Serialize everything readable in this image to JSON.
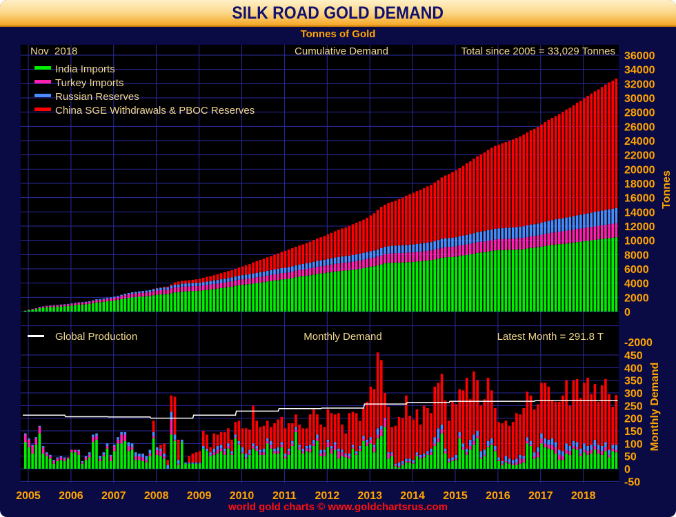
{
  "title": "SILK ROAD GOLD DEMAND",
  "subtitle": "Tonnes of Gold",
  "footer": "world gold charts © www.goldchartsrus.com",
  "colors": {
    "india": "#00ee00",
    "turkey": "#ff20b0",
    "russia": "#4a8cff",
    "china": "#ff0000",
    "production": "#ffffff",
    "axis": "#ffa500"
  },
  "chart_data": [
    {
      "type": "bar",
      "stacked": true,
      "cumulative": true,
      "title": "Cumulative Demand",
      "date_label": "Nov  2018",
      "total_label": "Total since 2005 = 33,029 Tonnes",
      "ylabel": "Tonnes",
      "ylim": [
        0,
        36000
      ],
      "yticks": [
        36000,
        34000,
        32000,
        30000,
        28000,
        26000,
        24000,
        22000,
        20000,
        18000,
        16000,
        14000,
        12000,
        10000,
        8000,
        6000,
        4000,
        2000,
        0,
        -2000
      ],
      "legend": [
        "India Imports",
        "Turkey Imports",
        "Russian Reserves",
        "China SGE Withdrawals & PBOC Reserves"
      ],
      "legend_position": "top-left",
      "grid": true
    },
    {
      "type": "bar",
      "stacked": true,
      "title": "Monthly Demand",
      "latest_label": "Latest Month = 291.8 T",
      "production_label": "Global Production",
      "ylabel": "Monthly Demand",
      "ylim": [
        -50,
        450
      ],
      "yticks": [
        450,
        400,
        350,
        300,
        250,
        200,
        150,
        100,
        50,
        0,
        -50
      ],
      "xticks": [
        "2005",
        "2006",
        "2007",
        "2008",
        "2009",
        "2010",
        "2011",
        "2012",
        "2013",
        "2014",
        "2015",
        "2016",
        "2017",
        "2018"
      ],
      "x_start": "2005-01",
      "x_end": "2018-11",
      "grid": true,
      "production_by_year": [
        212,
        206,
        205,
        200,
        212,
        228,
        238,
        240,
        256,
        262,
        267,
        267,
        270,
        270
      ],
      "series": {
        "india": [
          105,
          85,
          60,
          95,
          140,
          60,
          50,
          40,
          20,
          30,
          35,
          30,
          40,
          65,
          65,
          55,
          20,
          35,
          45,
          105,
          115,
          30,
          50,
          80,
          30,
          70,
          100,
          100,
          110,
          70,
          75,
          35,
          35,
          30,
          25,
          50,
          120,
          55,
          50,
          40,
          0,
          135,
          110,
          15,
          105,
          20,
          20,
          20,
          20,
          20,
          80,
          70,
          50,
          55,
          60,
          70,
          55,
          80,
          55,
          120,
          95,
          60,
          40,
          55,
          80,
          70,
          55,
          55,
          100,
          80,
          60,
          60,
          85,
          40,
          55,
          90,
          145,
          75,
          60,
          70,
          65,
          90,
          110,
          50,
          50,
          85,
          60,
          75,
          40,
          50,
          45,
          40,
          80,
          55,
          70,
          110,
          90,
          100,
          65,
          120,
          130,
          165,
          40,
          50,
          10,
          5,
          15,
          25,
          25,
          20,
          50,
          40,
          45,
          55,
          55,
          90,
          105,
          140,
          60,
          25,
          30,
          35,
          120,
          75,
          55,
          75,
          95,
          120,
          40,
          50,
          85,
          95,
          70,
          30,
          15,
          25,
          20,
          15,
          15,
          20,
          25,
          100,
          90,
          40,
          45,
          100,
          85,
          80,
          75,
          60,
          35,
          35,
          60,
          55,
          80,
          75,
          50,
          65,
          55,
          60,
          75,
          60,
          55,
          70,
          45,
          70,
          65
        ],
        "turkey": [
          30,
          30,
          30,
          25,
          25,
          25,
          10,
          10,
          10,
          10,
          10,
          10,
          5,
          10,
          10,
          15,
          5,
          10,
          10,
          20,
          15,
          10,
          5,
          10,
          20,
          20,
          15,
          35,
          25,
          20,
          10,
          15,
          15,
          15,
          10,
          10,
          10,
          20,
          20,
          10,
          0,
          60,
          5,
          5,
          0,
          0,
          0,
          0,
          0,
          0,
          0,
          0,
          5,
          10,
          15,
          10,
          15,
          10,
          5,
          5,
          5,
          5,
          5,
          5,
          10,
          10,
          10,
          10,
          10,
          15,
          10,
          10,
          10,
          10,
          15,
          10,
          10,
          10,
          10,
          10,
          15,
          10,
          10,
          10,
          15,
          20,
          20,
          20,
          30,
          15,
          10,
          10,
          5,
          5,
          10,
          10,
          15,
          15,
          20,
          15,
          25,
          30,
          20,
          10,
          5,
          5,
          5,
          5,
          5,
          5,
          5,
          5,
          5,
          5,
          10,
          10,
          15,
          15,
          10,
          5,
          5,
          5,
          10,
          10,
          10,
          15,
          15,
          10,
          5,
          5,
          5,
          5,
          5,
          5,
          5,
          5,
          5,
          5,
          10,
          20,
          15,
          10,
          5,
          10,
          20,
          20,
          15,
          15,
          20,
          25,
          20,
          15,
          15,
          15,
          10,
          10,
          10,
          10,
          15,
          15,
          15,
          15,
          15,
          15,
          10,
          10,
          10
        ],
        "russia": [
          5,
          5,
          5,
          5,
          5,
          5,
          5,
          5,
          5,
          5,
          5,
          5,
          0,
          0,
          0,
          5,
          5,
          5,
          10,
          10,
          10,
          10,
          10,
          10,
          5,
          5,
          10,
          10,
          10,
          15,
          15,
          15,
          10,
          15,
          15,
          15,
          15,
          10,
          10,
          10,
          15,
          30,
          20,
          15,
          10,
          5,
          5,
          5,
          5,
          5,
          10,
          10,
          10,
          15,
          15,
          15,
          10,
          10,
          10,
          10,
          10,
          20,
          15,
          15,
          10,
          10,
          10,
          15,
          10,
          15,
          10,
          15,
          10,
          10,
          10,
          10,
          10,
          10,
          10,
          10,
          15,
          15,
          15,
          15,
          10,
          10,
          10,
          10,
          10,
          10,
          5,
          10,
          10,
          10,
          10,
          10,
          10,
          10,
          10,
          25,
          15,
          5,
          5,
          5,
          5,
          15,
          10,
          10,
          10,
          10,
          10,
          10,
          10,
          10,
          15,
          25,
          40,
          20,
          10,
          10,
          10,
          15,
          15,
          15,
          15,
          25,
          25,
          20,
          25,
          20,
          20,
          20,
          15,
          10,
          10,
          20,
          15,
          15,
          15,
          15,
          10,
          15,
          15,
          15,
          20,
          20,
          20,
          20,
          25,
          20,
          20,
          20,
          25,
          20,
          20,
          20,
          20,
          25,
          20,
          20,
          25,
          20,
          20,
          20,
          20,
          15,
          20
        ],
        "china": [
          0,
          0,
          0,
          0,
          0,
          0,
          0,
          0,
          0,
          0,
          0,
          0,
          0,
          0,
          0,
          0,
          0,
          0,
          0,
          0,
          0,
          0,
          0,
          0,
          0,
          0,
          0,
          0,
          0,
          0,
          0,
          0,
          0,
          0,
          0,
          0,
          45,
          0,
          15,
          40,
          20,
          65,
          150,
          80,
          0,
          0,
          25,
          35,
          40,
          45,
          60,
          55,
          20,
          60,
          45,
          50,
          65,
          60,
          45,
          50,
          80,
          75,
          100,
          80,
          150,
          100,
          90,
          90,
          70,
          55,
          100,
          110,
          100,
          100,
          100,
          70,
          50,
          80,
          80,
          70,
          120,
          120,
          80,
          100,
          90,
          120,
          130,
          110,
          140,
          100,
          80,
          160,
          130,
          150,
          100,
          110,
          150,
          200,
          220,
          300,
          260,
          100,
          180,
          100,
          150,
          180,
          170,
          250,
          170,
          160,
          170,
          120,
          190,
          170,
          140,
          200,
          180,
          200,
          190,
          150,
          220,
          200,
          170,
          210,
          280,
          160,
          250,
          200,
          180,
          200,
          250,
          190,
          150,
          140,
          150,
          140,
          130,
          150,
          180,
          160,
          190,
          180,
          180,
          170,
          170,
          200,
          220,
          210,
          150,
          160,
          190,
          220,
          250,
          160,
          240,
          250,
          200,
          240,
          270,
          200,
          220,
          170,
          240,
          250,
          220,
          150,
          197
        ]
      }
    }
  ]
}
